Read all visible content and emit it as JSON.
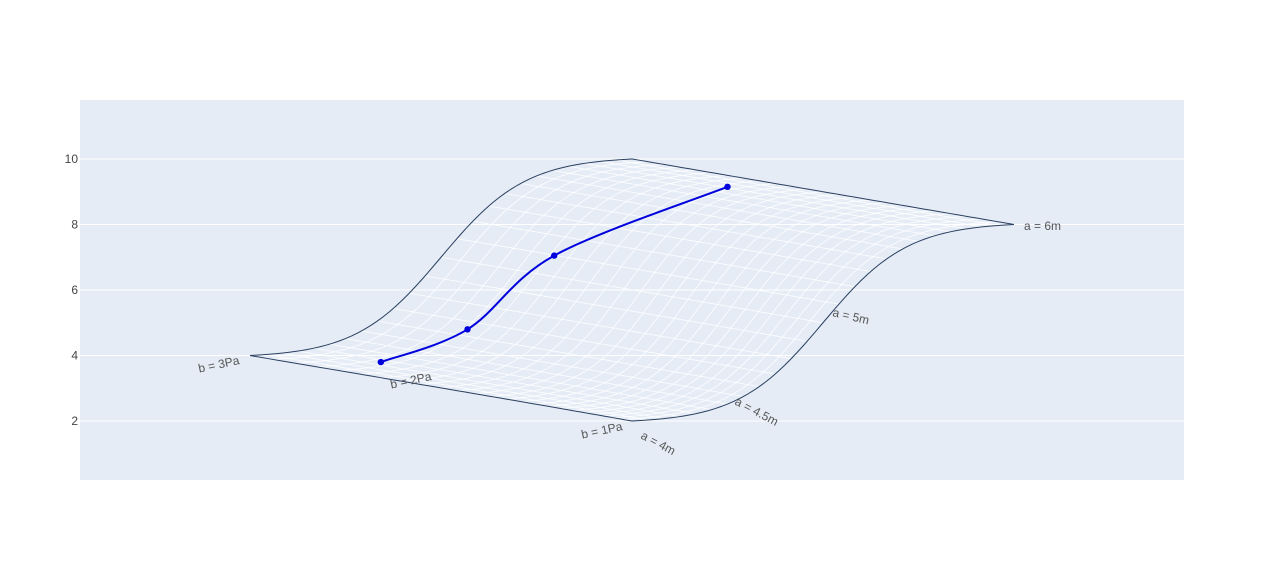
{
  "colors": {
    "plot_background": "#e5ecf6",
    "gridline": "#ffffff",
    "carpet_grid": "#ffffff",
    "carpet_boundary": "#2a3f5f",
    "series": "#0000dd"
  },
  "chart_data": {
    "type": "carpet-line",
    "title": "",
    "xlabel": "",
    "ylabel": "",
    "ylim": [
      0.2,
      11.8
    ],
    "y_ticks": [
      2,
      4,
      6,
      8,
      10
    ],
    "grid": true,
    "carpet": {
      "a_parameter": {
        "range": [
          4,
          6
        ],
        "labels": [
          {
            "value": 4,
            "text": "a = 4m"
          },
          {
            "value": 4.5,
            "text": "a = 4.5m"
          },
          {
            "value": 5,
            "text": "a = 5m"
          },
          {
            "value": 6,
            "text": "a = 6m"
          }
        ]
      },
      "b_parameter": {
        "range": [
          1,
          3
        ],
        "labels": [
          {
            "value": 1,
            "text": "b = 1Pa"
          },
          {
            "value": 2,
            "text": "b = 2Pa"
          },
          {
            "value": 3,
            "text": "b = 3Pa"
          }
        ]
      },
      "corner_y": {
        "a4_b1": 2,
        "a6_b1": 8,
        "a4_b3": 4,
        "a6_b3": 10
      }
    },
    "series": [
      {
        "mode": "lines+markers",
        "points": [
          {
            "a": 4,
            "b": 2.5,
            "y": 3.8
          },
          {
            "a": 4.5,
            "b": 2.5,
            "y": 4.8
          },
          {
            "a": 5,
            "b": 2.5,
            "y": 7.05
          },
          {
            "a": 6,
            "b": 2.5,
            "y": 9.15
          }
        ]
      }
    ]
  }
}
